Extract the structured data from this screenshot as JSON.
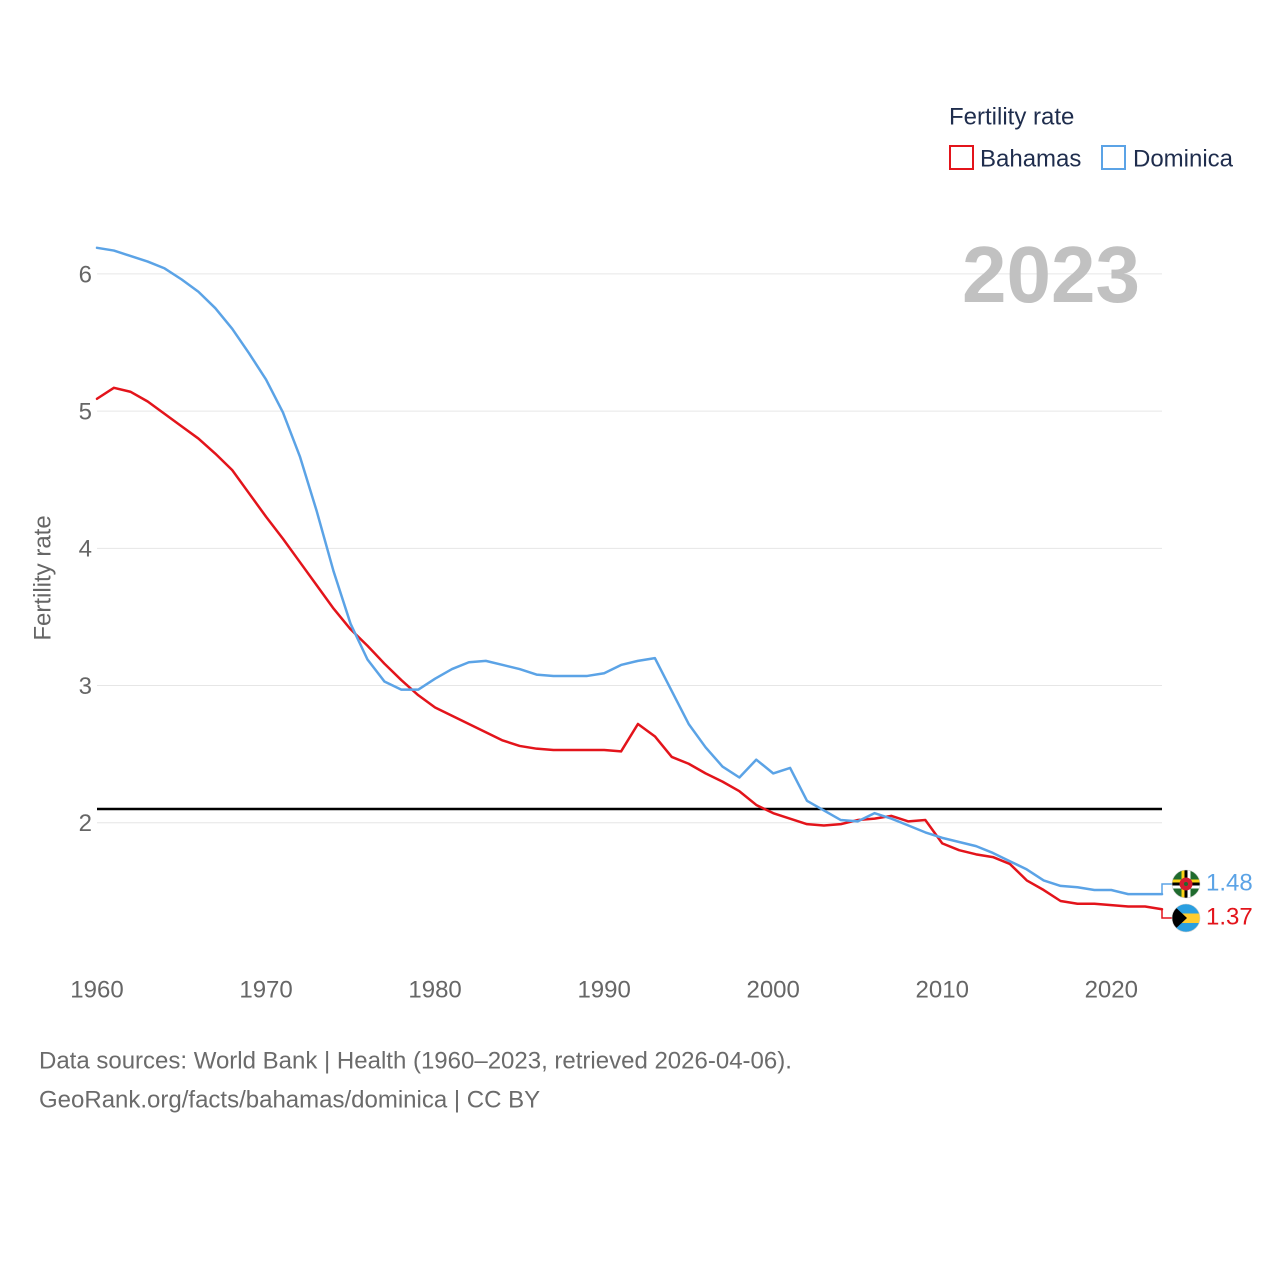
{
  "legend": {
    "title": "Fertility rate",
    "items": [
      {
        "label": "Bahamas",
        "color": "#e3141b"
      },
      {
        "label": "Dominica",
        "color": "#5ba3e6"
      }
    ]
  },
  "year_display": "2023",
  "footer": {
    "line1": "Data sources: World Bank | Health (1960–2023, retrieved 2026-04-06).",
    "line2": "GeoRank.org/facts/bahamas/dominica | CC BY"
  },
  "colors": {
    "reference_line": "#000000",
    "gridline": "#e6e6e6",
    "watermark": "#c1c1c1"
  },
  "flags": [
    {
      "country": "Dominica",
      "icon": "dominica-flag-icon"
    },
    {
      "country": "Bahamas",
      "icon": "bahamas-flag-icon"
    }
  ],
  "chart_data": {
    "type": "line",
    "xlabel": "",
    "ylabel": "Fertility rate",
    "xlim": [
      1960,
      2023
    ],
    "ylim": [
      1.0,
      6.4
    ],
    "x_ticks": [
      1960,
      1970,
      1980,
      1990,
      2000,
      2010,
      2020
    ],
    "y_ticks": [
      2,
      3,
      4,
      5,
      6
    ],
    "grid": "horizontal",
    "legend_position": "top-right",
    "reference_line": {
      "value": 2.1
    },
    "x": [
      1960,
      1961,
      1962,
      1963,
      1964,
      1965,
      1966,
      1967,
      1968,
      1969,
      1970,
      1971,
      1972,
      1973,
      1974,
      1975,
      1976,
      1977,
      1978,
      1979,
      1980,
      1981,
      1982,
      1983,
      1984,
      1985,
      1986,
      1987,
      1988,
      1989,
      1990,
      1991,
      1992,
      1993,
      1994,
      1995,
      1996,
      1997,
      1998,
      1999,
      2000,
      2001,
      2002,
      2003,
      2004,
      2005,
      2006,
      2007,
      2008,
      2009,
      2010,
      2011,
      2012,
      2013,
      2014,
      2015,
      2016,
      2017,
      2018,
      2019,
      2020,
      2021,
      2022,
      2023
    ],
    "series": [
      {
        "name": "Bahamas",
        "color": "#e3141b",
        "end_label": "1.37",
        "values": [
          5.09,
          5.17,
          5.14,
          5.07,
          4.98,
          4.89,
          4.8,
          4.69,
          4.57,
          4.4,
          4.23,
          4.07,
          3.9,
          3.73,
          3.56,
          3.41,
          3.29,
          3.16,
          3.04,
          2.93,
          2.84,
          2.78,
          2.72,
          2.66,
          2.6,
          2.56,
          2.54,
          2.53,
          2.53,
          2.53,
          2.53,
          2.52,
          2.72,
          2.63,
          2.48,
          2.43,
          2.36,
          2.3,
          2.23,
          2.13,
          2.07,
          2.03,
          1.99,
          1.98,
          1.99,
          2.02,
          2.03,
          2.05,
          2.01,
          2.02,
          1.85,
          1.8,
          1.77,
          1.75,
          1.7,
          1.58,
          1.51,
          1.43,
          1.41,
          1.41,
          1.4,
          1.39,
          1.39,
          1.37
        ]
      },
      {
        "name": "Dominica",
        "color": "#5ba3e6",
        "end_label": "1.48",
        "values": [
          6.19,
          6.17,
          6.13,
          6.09,
          6.04,
          5.96,
          5.87,
          5.75,
          5.6,
          5.42,
          5.23,
          4.99,
          4.67,
          4.27,
          3.83,
          3.45,
          3.19,
          3.03,
          2.97,
          2.97,
          3.05,
          3.12,
          3.17,
          3.18,
          3.15,
          3.12,
          3.08,
          3.07,
          3.07,
          3.07,
          3.09,
          3.15,
          3.18,
          3.2,
          2.96,
          2.72,
          2.55,
          2.41,
          2.33,
          2.46,
          2.36,
          2.4,
          2.16,
          2.09,
          2.02,
          2.01,
          2.07,
          2.03,
          1.98,
          1.93,
          1.89,
          1.86,
          1.83,
          1.78,
          1.72,
          1.66,
          1.58,
          1.54,
          1.53,
          1.51,
          1.51,
          1.48,
          1.48,
          1.48
        ]
      }
    ]
  }
}
